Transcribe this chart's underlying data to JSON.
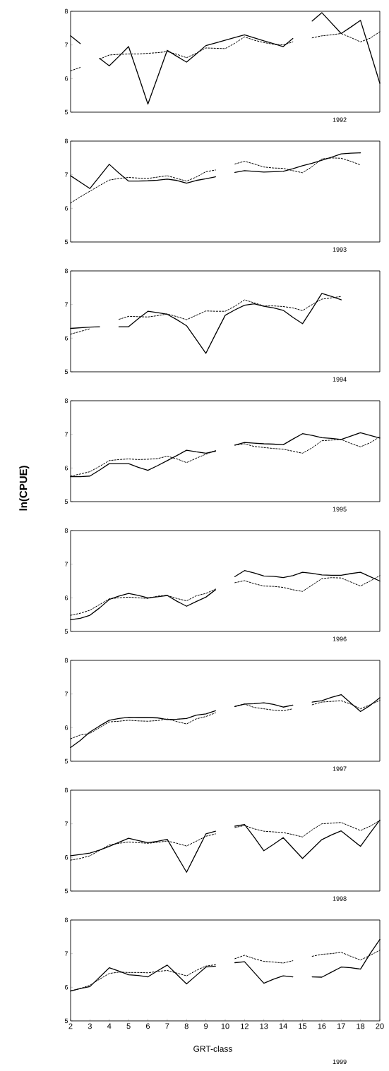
{
  "chart_data": [
    {
      "type": "line",
      "title": "1992",
      "tick_labels": "y",
      "ylim": [
        5,
        8
      ],
      "yticks": [
        5,
        6,
        7,
        8
      ],
      "categories": [
        "2",
        null,
        "3",
        null,
        "4",
        null,
        "5",
        null,
        "6",
        null,
        "7",
        null,
        "8",
        null,
        "9",
        null,
        "10",
        null,
        "12",
        null,
        "13",
        null,
        "14",
        null,
        "15",
        null,
        "16",
        null,
        "17",
        null,
        "18",
        null,
        "20"
      ],
      "series": [
        {
          "color": "#000000",
          "line_style": "solid",
          "values": [
            7.27,
            7.04,
            null,
            6.6,
            6.38,
            6.66,
            6.95,
            6.1,
            5.24,
            6.04,
            6.84,
            6.66,
            6.49,
            6.73,
            6.98,
            7.06,
            7.14,
            7.22,
            7.3,
            7.21,
            7.12,
            7.04,
            6.95,
            7.19,
            null,
            7.71,
            7.96,
            7.65,
            7.34,
            7.53,
            7.73,
            6.8,
            5.86
          ]
        },
        {
          "color": "#000000",
          "line_style": "dashed",
          "values": [
            6.23,
            6.33,
            null,
            6.58,
            6.7,
            6.72,
            6.73,
            6.73,
            6.75,
            6.77,
            6.8,
            6.72,
            6.62,
            6.75,
            6.91,
            6.9,
            6.89,
            7.05,
            7.24,
            7.14,
            7.07,
            7.02,
            7.0,
            7.09,
            null,
            7.21,
            7.27,
            7.3,
            7.34,
            7.22,
            7.09,
            7.2,
            7.39
          ]
        }
      ]
    },
    {
      "type": "line",
      "title": "1993",
      "tick_labels": "y",
      "ylim": [
        5,
        8
      ],
      "yticks": [
        5,
        6,
        7,
        8
      ],
      "categories": [
        "2",
        null,
        "3",
        null,
        "4",
        null,
        "5",
        null,
        "6",
        null,
        "7",
        null,
        "8",
        null,
        "9",
        null,
        "10",
        null,
        "12",
        null,
        "13",
        null,
        "14",
        null,
        "15",
        null,
        "16",
        null,
        "17",
        null,
        "18",
        null,
        "20"
      ],
      "series": [
        {
          "color": "#000000",
          "line_style": "solid",
          "values": [
            6.97,
            6.78,
            6.59,
            6.95,
            7.31,
            7.05,
            6.81,
            6.81,
            6.82,
            6.84,
            6.87,
            6.83,
            6.75,
            6.83,
            6.88,
            6.94,
            null,
            7.07,
            7.12,
            7.1,
            7.08,
            7.09,
            7.1,
            7.18,
            7.27,
            7.34,
            7.43,
            7.52,
            7.62,
            7.64,
            7.65,
            null,
            null
          ]
        },
        {
          "color": "#000000",
          "line_style": "dashed",
          "values": [
            6.16,
            6.34,
            6.51,
            6.68,
            6.84,
            6.89,
            6.92,
            6.9,
            6.89,
            6.93,
            6.97,
            6.89,
            6.81,
            6.93,
            7.09,
            7.14,
            null,
            7.32,
            7.4,
            7.32,
            7.23,
            7.2,
            7.19,
            7.12,
            7.06,
            7.24,
            7.47,
            7.5,
            7.49,
            7.4,
            7.29,
            null,
            null
          ]
        }
      ]
    },
    {
      "type": "line",
      "title": "1994",
      "tick_labels": "y",
      "ylim": [
        5,
        8
      ],
      "yticks": [
        5,
        6,
        7,
        8
      ],
      "categories": [
        "2",
        null,
        "3",
        null,
        "4",
        null,
        "5",
        null,
        "6",
        null,
        "7",
        null,
        "8",
        null,
        "9",
        null,
        "10",
        null,
        "12",
        null,
        "13",
        null,
        "14",
        null,
        "15",
        null,
        "16",
        null,
        "17",
        null,
        "18",
        null,
        "20"
      ],
      "series": [
        {
          "color": "#000000",
          "line_style": "solid",
          "values": [
            6.29,
            6.31,
            6.33,
            6.34,
            null,
            6.34,
            6.34,
            6.58,
            6.8,
            6.76,
            6.71,
            6.55,
            6.37,
            5.96,
            5.55,
            6.12,
            6.68,
            6.84,
            6.98,
            7.02,
            6.95,
            6.9,
            6.83,
            6.62,
            6.43,
            6.87,
            7.33,
            7.24,
            7.14,
            null,
            null,
            null,
            null
          ]
        },
        {
          "color": "#000000",
          "line_style": "dashed",
          "values": [
            6.12,
            6.2,
            6.28,
            null,
            null,
            6.56,
            6.65,
            6.64,
            6.63,
            6.67,
            6.72,
            6.64,
            6.55,
            6.68,
            6.81,
            6.8,
            6.8,
            6.95,
            7.14,
            7.05,
            6.96,
            6.96,
            6.94,
            6.9,
            6.82,
            7.0,
            7.16,
            7.2,
            7.24,
            null,
            null,
            null,
            null
          ]
        }
      ]
    },
    {
      "type": "line",
      "title": "1995",
      "tick_labels": "y",
      "ylim": [
        5,
        8
      ],
      "yticks": [
        5,
        6,
        7,
        8
      ],
      "categories": [
        "2",
        null,
        "3",
        null,
        "4",
        null,
        "5",
        null,
        "6",
        null,
        "7",
        null,
        "8",
        null,
        "9",
        null,
        "10",
        null,
        "12",
        null,
        "13",
        null,
        "14",
        null,
        "15",
        null,
        "16",
        null,
        "17",
        null,
        "18",
        null,
        "20"
      ],
      "series": [
        {
          "color": "#000000",
          "line_style": "solid",
          "values": [
            5.74,
            5.74,
            5.76,
            5.94,
            6.13,
            6.13,
            6.13,
            6.02,
            5.93,
            6.07,
            6.22,
            6.37,
            6.53,
            6.48,
            6.44,
            6.5,
            null,
            6.68,
            6.76,
            6.74,
            6.72,
            6.71,
            6.69,
            6.86,
            7.02,
            6.97,
            6.9,
            6.88,
            6.85,
            6.95,
            7.05,
            6.97,
            6.89
          ]
        },
        {
          "color": "#000000",
          "line_style": "dashed",
          "values": [
            5.76,
            5.82,
            5.89,
            6.05,
            6.22,
            6.25,
            6.27,
            6.25,
            6.26,
            6.28,
            6.35,
            6.27,
            6.16,
            6.29,
            6.41,
            6.52,
            null,
            6.68,
            6.72,
            6.64,
            6.61,
            6.58,
            6.56,
            6.5,
            6.44,
            6.6,
            6.81,
            6.83,
            6.85,
            6.73,
            6.63,
            6.75,
            6.93
          ]
        }
      ]
    },
    {
      "type": "line",
      "title": "1996",
      "ylabel": "ln(CPUE)",
      "tick_labels": "y",
      "ylim": [
        5,
        8
      ],
      "yticks": [
        5,
        6,
        7,
        8
      ],
      "categories": [
        "2",
        null,
        "3",
        null,
        "4",
        null,
        "5",
        null,
        "6",
        null,
        "7",
        null,
        "8",
        null,
        "9",
        null,
        "10",
        null,
        "12",
        null,
        "13",
        null,
        "14",
        null,
        "15",
        null,
        "16",
        null,
        "17",
        null,
        "18",
        null,
        "20"
      ],
      "series": [
        {
          "color": "#000000",
          "line_style": "solid",
          "values": [
            5.35,
            5.39,
            5.48,
            5.7,
            5.95,
            6.05,
            6.13,
            6.07,
            6.0,
            6.03,
            6.07,
            5.9,
            5.75,
            5.89,
            6.02,
            6.24,
            null,
            6.63,
            6.81,
            6.74,
            6.65,
            6.64,
            6.6,
            6.66,
            6.76,
            6.73,
            6.68,
            6.67,
            6.67,
            6.72,
            6.76,
            6.63,
            6.5
          ]
        },
        {
          "color": "#000000",
          "line_style": "dashed",
          "values": [
            5.48,
            5.54,
            5.63,
            5.8,
            5.97,
            6.0,
            6.02,
            6.0,
            5.98,
            6.05,
            6.07,
            5.98,
            5.91,
            6.06,
            6.13,
            6.26,
            null,
            6.45,
            6.51,
            6.42,
            6.35,
            6.34,
            6.31,
            6.24,
            6.19,
            6.38,
            6.57,
            6.6,
            6.59,
            6.47,
            6.35,
            6.5,
            6.66
          ]
        }
      ]
    },
    {
      "type": "line",
      "title": "1997",
      "tick_labels": "y",
      "ylim": [
        5,
        8
      ],
      "yticks": [
        5,
        6,
        7,
        8
      ],
      "categories": [
        "2",
        null,
        "3",
        null,
        "4",
        null,
        "5",
        null,
        "6",
        null,
        "7",
        null,
        "8",
        null,
        "9",
        null,
        "10",
        null,
        "12",
        null,
        "13",
        null,
        "14",
        null,
        "15",
        null,
        "16",
        null,
        "17",
        null,
        "18",
        null,
        "20"
      ],
      "series": [
        {
          "color": "#000000",
          "line_style": "solid",
          "values": [
            5.41,
            5.62,
            5.87,
            6.05,
            6.22,
            6.27,
            6.31,
            6.3,
            6.3,
            6.29,
            6.24,
            6.25,
            6.27,
            6.37,
            6.41,
            6.5,
            null,
            6.63,
            6.7,
            6.71,
            6.74,
            6.69,
            6.61,
            6.67,
            null,
            6.76,
            6.8,
            6.9,
            6.98,
            6.73,
            6.48,
            6.66,
            6.89
          ]
        },
        {
          "color": "#000000",
          "line_style": "dashed",
          "values": [
            5.67,
            5.78,
            5.83,
            6.0,
            6.17,
            6.19,
            6.22,
            6.2,
            6.19,
            6.21,
            6.26,
            6.18,
            6.11,
            6.26,
            6.33,
            6.44,
            null,
            6.63,
            6.7,
            6.6,
            6.56,
            6.52,
            6.5,
            6.56,
            null,
            6.68,
            6.76,
            6.78,
            6.8,
            6.7,
            6.56,
            6.68,
            6.81
          ]
        }
      ]
    },
    {
      "type": "line",
      "title": "1998",
      "tick_labels": "y",
      "ylim": [
        5,
        8
      ],
      "yticks": [
        5,
        6,
        7,
        8
      ],
      "categories": [
        "2",
        null,
        "3",
        null,
        "4",
        null,
        "5",
        null,
        "6",
        null,
        "7",
        null,
        "8",
        null,
        "9",
        null,
        "10",
        null,
        "12",
        null,
        "13",
        null,
        "14",
        null,
        "15",
        null,
        "16",
        null,
        "17",
        null,
        "18",
        null,
        "20"
      ],
      "series": [
        {
          "color": "#000000",
          "line_style": "solid",
          "values": [
            6.05,
            6.09,
            6.13,
            6.22,
            6.33,
            6.45,
            6.57,
            6.5,
            6.44,
            6.48,
            6.54,
            6.05,
            5.56,
            6.13,
            6.7,
            6.78,
            null,
            6.93,
            6.98,
            6.6,
            6.2,
            6.39,
            6.59,
            6.28,
            5.97,
            6.25,
            6.53,
            6.67,
            6.79,
            6.56,
            6.33,
            6.73,
            7.11
          ]
        },
        {
          "color": "#000000",
          "line_style": "dashed",
          "values": [
            5.92,
            5.97,
            6.05,
            6.21,
            6.37,
            6.42,
            6.46,
            6.44,
            6.42,
            6.45,
            6.49,
            6.42,
            6.34,
            6.48,
            6.63,
            6.7,
            null,
            6.89,
            6.95,
            6.85,
            6.78,
            6.76,
            6.74,
            6.68,
            6.61,
            6.82,
            7.0,
            7.02,
            7.04,
            6.92,
            6.8,
            6.93,
            7.1
          ]
        }
      ]
    },
    {
      "type": "line",
      "title": "1999",
      "xlabel": "GRT-class",
      "ylim": [
        5,
        8
      ],
      "yticks": [
        5,
        6,
        7,
        8
      ],
      "categories": [
        "2",
        null,
        "3",
        null,
        "4",
        null,
        "5",
        null,
        "6",
        null,
        "7",
        null,
        "8",
        null,
        "9",
        null,
        "10",
        null,
        "12",
        null,
        "13",
        null,
        "14",
        null,
        "15",
        null,
        "16",
        null,
        "17",
        null,
        "18",
        null,
        "20"
      ],
      "series": [
        {
          "color": "#000000",
          "line_style": "solid",
          "values": [
            5.89,
            5.96,
            6.02,
            6.3,
            6.58,
            6.48,
            6.37,
            6.35,
            6.31,
            6.49,
            6.66,
            6.38,
            6.1,
            6.35,
            6.6,
            6.63,
            null,
            6.73,
            6.76,
            6.44,
            6.12,
            6.24,
            6.34,
            6.31,
            null,
            6.31,
            6.3,
            6.45,
            6.6,
            6.58,
            6.54,
            7.0,
            7.42
          ]
        },
        {
          "color": "#000000",
          "line_style": "dashed",
          "values": [
            5.89,
            5.96,
            6.06,
            6.24,
            6.41,
            6.45,
            6.44,
            6.44,
            6.43,
            6.47,
            6.5,
            6.42,
            6.34,
            6.5,
            6.63,
            6.67,
            null,
            6.85,
            6.95,
            6.85,
            6.77,
            6.75,
            6.72,
            6.79,
            null,
            6.92,
            6.98,
            7.0,
            7.04,
            6.92,
            6.81,
            6.95,
            7.1
          ]
        }
      ]
    }
  ]
}
